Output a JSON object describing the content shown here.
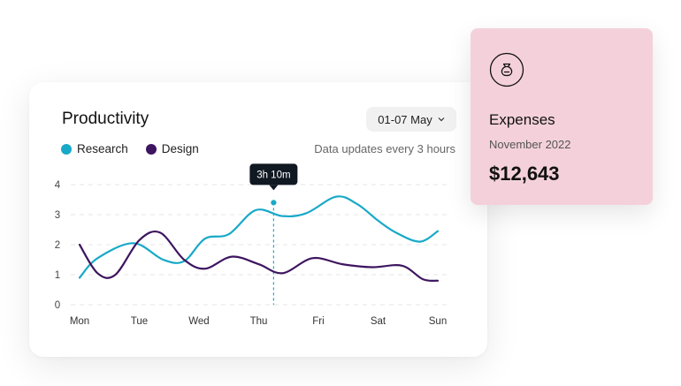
{
  "productivity": {
    "title": "Productivity",
    "date_range": "01-07 May",
    "note": "Data updates every 3 hours",
    "tooltip": "3h 10m"
  },
  "chart_data": {
    "type": "line",
    "categories": [
      "Mon",
      "Tue",
      "Wed",
      "Thu",
      "Fri",
      "Sat",
      "Sun"
    ],
    "y_ticks": [
      "0",
      "1",
      "2",
      "3",
      "4"
    ],
    "ylim": [
      0,
      4
    ],
    "grid": true,
    "legend_position": "top-left",
    "series": [
      {
        "name": "Research",
        "color": "#18a9c8",
        "x": [
          0,
          0.3,
          0.9,
          1.4,
          1.75,
          2.1,
          2.5,
          2.95,
          3.4,
          3.8,
          4.3,
          4.65,
          5.0,
          5.3,
          5.7,
          6.0
        ],
        "values": [
          0.9,
          1.55,
          2.05,
          1.5,
          1.45,
          2.2,
          2.35,
          3.15,
          2.95,
          3.05,
          3.6,
          3.35,
          2.8,
          2.4,
          2.1,
          2.45
        ]
      },
      {
        "name": "Design",
        "color": "#3d1560",
        "x": [
          0,
          0.3,
          0.6,
          1.0,
          1.35,
          1.75,
          2.1,
          2.55,
          3.0,
          3.4,
          3.9,
          4.4,
          4.9,
          5.4,
          5.75,
          6.0
        ],
        "values": [
          2.0,
          1.05,
          1.0,
          2.15,
          2.4,
          1.5,
          1.2,
          1.6,
          1.35,
          1.05,
          1.55,
          1.35,
          1.25,
          1.3,
          0.85,
          0.8
        ]
      }
    ],
    "highlight": {
      "series": "Research",
      "x": 3.25,
      "value": 3.4,
      "label": "3h 10m"
    }
  },
  "expenses": {
    "title": "Expenses",
    "period": "November 2022",
    "amount": "$12,643",
    "icon": "money-bag-icon"
  }
}
